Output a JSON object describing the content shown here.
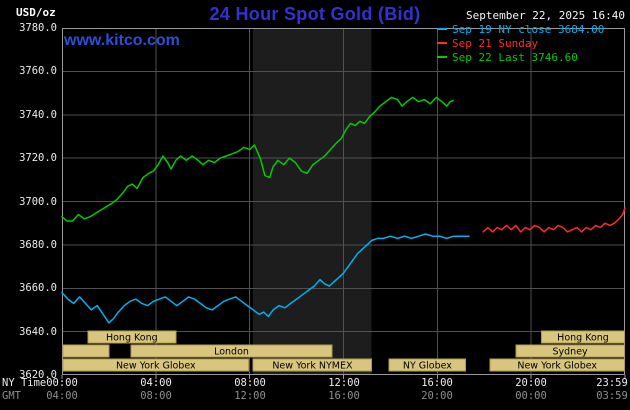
{
  "header": {
    "unit_label": "USD/oz",
    "title": "24 Hour Spot Gold (Bid)",
    "datetime": "September 22, 2025 16:40",
    "watermark": "www.kitco.com",
    "legend": [
      {
        "label": "Sep 19 NY close 3684.00",
        "color": "#00b0f0"
      },
      {
        "label": "Sep 21 Sunday",
        "color": "#ff2a2a"
      },
      {
        "label": "Sep 22 Last 3746.60",
        "color": "#00cc00"
      }
    ]
  },
  "colors": {
    "background": "#000000",
    "title": "#3232d2",
    "watermark": "#2d4fd8",
    "date_text": "#f5f5f5",
    "grid": "#515151",
    "border": "#9a9a9a",
    "band": "#1d1d1d"
  },
  "axes": {
    "x_ny_label": "NY Time",
    "x_gmt_label": "GMT",
    "y_ticks": [
      "3780.0",
      "3760.0",
      "3740.0",
      "3720.0",
      "3700.0",
      "3680.0",
      "3660.0",
      "3640.0",
      "3620.0"
    ],
    "x_ny_ticks": [
      "00:00",
      "04:00",
      "08:00",
      "12:00",
      "16:00",
      "20:00",
      "23:59"
    ],
    "x_gmt_ticks": [
      "04:00",
      "08:00",
      "12:00",
      "16:00",
      "20:00",
      "00:00",
      "03:59"
    ],
    "x_tick_hours": [
      0,
      4,
      8,
      12,
      16,
      20,
      24
    ]
  },
  "sessions": {
    "box_fill": "#d8c67e",
    "box_border": "#b09b50",
    "text_color": "#000000",
    "rows": [
      [
        {
          "label": "Hong Kong",
          "start": 1.1,
          "end": 4.85
        },
        {
          "label": "Hong Kong",
          "start": 20.45,
          "end": 23.97
        }
      ],
      [
        {
          "label": "",
          "start": 0.05,
          "end": 2.0
        },
        {
          "label": "London",
          "start": 2.95,
          "end": 11.5
        },
        {
          "label": "Sydney",
          "start": 19.35,
          "end": 23.97
        }
      ],
      [
        {
          "label": "New York Globex",
          "start": 0.05,
          "end": 7.95
        },
        {
          "label": "New York NYMEX",
          "start": 8.15,
          "end": 13.2
        },
        {
          "label": "NY Globex",
          "start": 13.95,
          "end": 17.2
        },
        {
          "label": "New York Globex",
          "start": 18.25,
          "end": 23.97
        }
      ]
    ]
  },
  "chart_data": {
    "type": "line",
    "title": "24 Hour Spot Gold (Bid)",
    "ylabel": "USD/oz",
    "xlabel": "NY Time (hours, Sep 22 2025)",
    "ylim": [
      3620,
      3780
    ],
    "xlim": [
      0,
      24
    ],
    "grid": true,
    "legend_position": "top-right",
    "y_tick_values": [
      3780,
      3760,
      3740,
      3720,
      3700,
      3680,
      3660,
      3640,
      3620
    ],
    "y_gridline_values": [
      3640,
      3660,
      3680,
      3700,
      3720,
      3740,
      3760
    ],
    "x_gridline_hours": [
      4,
      8,
      12,
      16,
      20
    ],
    "nymex_band_hours": [
      8.15,
      13.2
    ],
    "series": [
      {
        "id": "sep19",
        "name": "Sep 19 NY close",
        "close": 3684.0,
        "color": "#00b0f0",
        "points": [
          [
            0,
            3658
          ],
          [
            0.25,
            3655
          ],
          [
            0.5,
            3653
          ],
          [
            0.75,
            3656
          ],
          [
            1.0,
            3653
          ],
          [
            1.25,
            3650
          ],
          [
            1.5,
            3652
          ],
          [
            1.75,
            3648
          ],
          [
            2.0,
            3644
          ],
          [
            2.2,
            3646
          ],
          [
            2.4,
            3649
          ],
          [
            2.65,
            3652
          ],
          [
            2.9,
            3654
          ],
          [
            3.15,
            3655
          ],
          [
            3.4,
            3653
          ],
          [
            3.65,
            3652
          ],
          [
            3.9,
            3654
          ],
          [
            4.15,
            3655
          ],
          [
            4.4,
            3656
          ],
          [
            4.65,
            3654
          ],
          [
            4.9,
            3652
          ],
          [
            5.15,
            3654
          ],
          [
            5.4,
            3656
          ],
          [
            5.65,
            3655
          ],
          [
            5.9,
            3653
          ],
          [
            6.15,
            3651
          ],
          [
            6.4,
            3650
          ],
          [
            6.65,
            3652
          ],
          [
            6.9,
            3654
          ],
          [
            7.15,
            3655
          ],
          [
            7.4,
            3656
          ],
          [
            7.65,
            3654
          ],
          [
            7.9,
            3652
          ],
          [
            8.15,
            3650
          ],
          [
            8.4,
            3648
          ],
          [
            8.6,
            3649
          ],
          [
            8.8,
            3647
          ],
          [
            9.0,
            3650
          ],
          [
            9.25,
            3652
          ],
          [
            9.5,
            3651
          ],
          [
            9.75,
            3653
          ],
          [
            10.0,
            3655
          ],
          [
            10.25,
            3657
          ],
          [
            10.5,
            3659
          ],
          [
            10.75,
            3661
          ],
          [
            11.0,
            3664
          ],
          [
            11.2,
            3662
          ],
          [
            11.4,
            3661
          ],
          [
            11.6,
            3663
          ],
          [
            11.8,
            3665
          ],
          [
            12.0,
            3667
          ],
          [
            12.2,
            3670
          ],
          [
            12.4,
            3673
          ],
          [
            12.6,
            3676
          ],
          [
            12.8,
            3678
          ],
          [
            13.0,
            3680
          ],
          [
            13.2,
            3682
          ],
          [
            13.45,
            3683
          ],
          [
            13.7,
            3683
          ],
          [
            14.0,
            3684
          ],
          [
            14.3,
            3683
          ],
          [
            14.6,
            3684
          ],
          [
            14.9,
            3683
          ],
          [
            15.2,
            3684
          ],
          [
            15.5,
            3685
          ],
          [
            15.8,
            3684
          ],
          [
            16.1,
            3684
          ],
          [
            16.4,
            3683
          ],
          [
            16.7,
            3684
          ],
          [
            17.0,
            3684
          ],
          [
            17.35,
            3684
          ]
        ]
      },
      {
        "id": "sep21",
        "name": "Sep 21 Sunday",
        "color": "#ff2a2a",
        "points": [
          [
            17.95,
            3686
          ],
          [
            18.15,
            3688
          ],
          [
            18.35,
            3686
          ],
          [
            18.55,
            3688
          ],
          [
            18.75,
            3687
          ],
          [
            18.95,
            3689
          ],
          [
            19.15,
            3687
          ],
          [
            19.35,
            3689
          ],
          [
            19.55,
            3686
          ],
          [
            19.75,
            3688
          ],
          [
            19.95,
            3687
          ],
          [
            20.15,
            3689
          ],
          [
            20.35,
            3688
          ],
          [
            20.55,
            3686
          ],
          [
            20.75,
            3688
          ],
          [
            20.95,
            3687
          ],
          [
            21.15,
            3689
          ],
          [
            21.35,
            3688
          ],
          [
            21.55,
            3686
          ],
          [
            21.75,
            3687
          ],
          [
            21.95,
            3688
          ],
          [
            22.15,
            3686
          ],
          [
            22.35,
            3688
          ],
          [
            22.55,
            3687
          ],
          [
            22.75,
            3689
          ],
          [
            22.95,
            3688
          ],
          [
            23.15,
            3690
          ],
          [
            23.35,
            3689
          ],
          [
            23.55,
            3690
          ],
          [
            23.75,
            3692
          ],
          [
            23.9,
            3694
          ],
          [
            24.0,
            3697
          ]
        ]
      },
      {
        "id": "sep22",
        "name": "Sep 22 Last",
        "last": 3746.6,
        "color": "#00cc00",
        "points": [
          [
            0,
            3693
          ],
          [
            0.2,
            3691
          ],
          [
            0.45,
            3691
          ],
          [
            0.7,
            3694
          ],
          [
            0.95,
            3692
          ],
          [
            1.2,
            3693
          ],
          [
            1.5,
            3695
          ],
          [
            1.8,
            3697
          ],
          [
            2.1,
            3699
          ],
          [
            2.35,
            3701
          ],
          [
            2.6,
            3704
          ],
          [
            2.8,
            3707
          ],
          [
            3.0,
            3708
          ],
          [
            3.2,
            3706
          ],
          [
            3.45,
            3711
          ],
          [
            3.7,
            3713
          ],
          [
            3.9,
            3714
          ],
          [
            4.1,
            3717
          ],
          [
            4.3,
            3721
          ],
          [
            4.5,
            3718
          ],
          [
            4.65,
            3715
          ],
          [
            4.85,
            3719
          ],
          [
            5.05,
            3721
          ],
          [
            5.3,
            3719
          ],
          [
            5.55,
            3721
          ],
          [
            5.8,
            3719
          ],
          [
            6.0,
            3717
          ],
          [
            6.25,
            3719
          ],
          [
            6.5,
            3718
          ],
          [
            6.75,
            3720
          ],
          [
            7.0,
            3721
          ],
          [
            7.25,
            3722
          ],
          [
            7.5,
            3723
          ],
          [
            7.75,
            3725
          ],
          [
            8.0,
            3724
          ],
          [
            8.2,
            3726
          ],
          [
            8.45,
            3720
          ],
          [
            8.65,
            3712
          ],
          [
            8.85,
            3711
          ],
          [
            9.0,
            3716
          ],
          [
            9.2,
            3719
          ],
          [
            9.45,
            3717
          ],
          [
            9.7,
            3720
          ],
          [
            9.95,
            3718
          ],
          [
            10.2,
            3714
          ],
          [
            10.45,
            3713
          ],
          [
            10.7,
            3717
          ],
          [
            10.95,
            3719
          ],
          [
            11.2,
            3721
          ],
          [
            11.45,
            3724
          ],
          [
            11.7,
            3727
          ],
          [
            11.9,
            3729
          ],
          [
            12.1,
            3733
          ],
          [
            12.3,
            3736
          ],
          [
            12.5,
            3735
          ],
          [
            12.7,
            3737
          ],
          [
            12.9,
            3736
          ],
          [
            13.1,
            3739
          ],
          [
            13.3,
            3741
          ],
          [
            13.55,
            3744
          ],
          [
            13.8,
            3746
          ],
          [
            14.05,
            3748
          ],
          [
            14.3,
            3747
          ],
          [
            14.5,
            3744
          ],
          [
            14.7,
            3746
          ],
          [
            14.95,
            3748
          ],
          [
            15.2,
            3746
          ],
          [
            15.45,
            3747
          ],
          [
            15.7,
            3745
          ],
          [
            15.95,
            3748
          ],
          [
            16.2,
            3746
          ],
          [
            16.4,
            3744
          ],
          [
            16.55,
            3746
          ],
          [
            16.67,
            3746.6
          ]
        ]
      }
    ]
  }
}
